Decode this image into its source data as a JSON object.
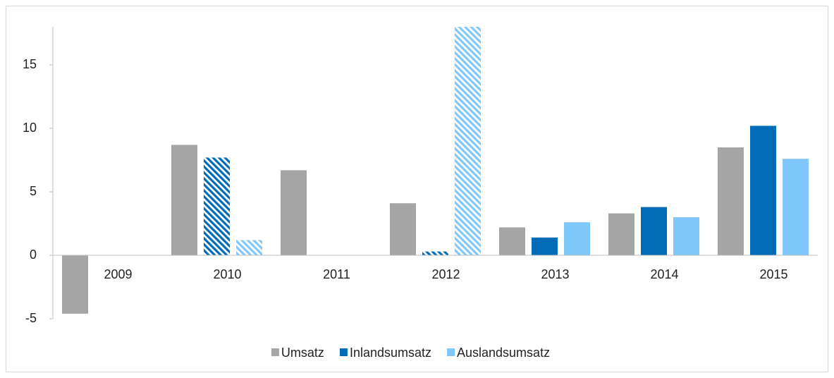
{
  "chart_data": {
    "type": "bar",
    "categories": [
      "2009",
      "2010",
      "2011",
      "2012",
      "2013",
      "2014",
      "2015"
    ],
    "series": [
      {
        "name": "Umsatz",
        "color": "#a5a5a5",
        "values": [
          -4.6,
          8.7,
          6.7,
          4.1,
          2.2,
          3.3,
          8.5
        ]
      },
      {
        "name": "Inlandsumsatz",
        "color": "#006bb6",
        "values": [
          null,
          7.7,
          null,
          0.3,
          1.4,
          3.8,
          10.2
        ],
        "hatched": [
          false,
          true,
          false,
          true,
          false,
          false,
          false
        ]
      },
      {
        "name": "Auslandsumsatz",
        "color": "#80c8fb",
        "values": [
          null,
          1.2,
          null,
          18,
          2.6,
          3.0,
          7.6
        ],
        "hatched": [
          false,
          true,
          false,
          true,
          false,
          false,
          false
        ]
      }
    ],
    "ylim": [
      -5,
      18
    ],
    "yticks": [
      -5,
      0,
      5,
      10,
      15
    ],
    "grid": false,
    "legend": "bottom"
  }
}
